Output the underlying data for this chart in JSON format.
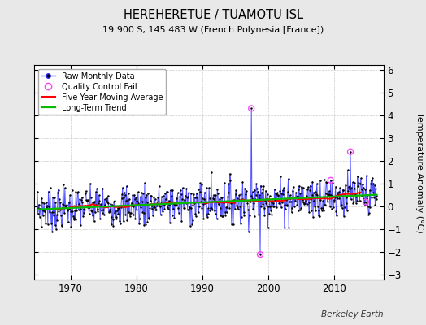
{
  "title": "HEREHERETUE / TUAMOTU ISL",
  "subtitle": "19.900 S, 145.483 W (French Polynesia [France])",
  "ylabel": "Temperature Anomaly (°C)",
  "credit": "Berkeley Earth",
  "xlim": [
    1964.5,
    2017.5
  ],
  "ylim": [
    -3.2,
    6.2
  ],
  "yticks": [
    -3,
    -2,
    -1,
    0,
    1,
    2,
    3,
    4,
    5,
    6
  ],
  "xticks": [
    1970,
    1980,
    1990,
    2000,
    2010
  ],
  "bg_color": "#e8e8e8",
  "plot_bg": "#ffffff",
  "raw_line_color": "#3333ff",
  "raw_marker_color": "#000000",
  "qc_color": "#ff44ff",
  "moving_avg_color": "#ff0000",
  "trend_color": "#00bb00",
  "seed": 7
}
